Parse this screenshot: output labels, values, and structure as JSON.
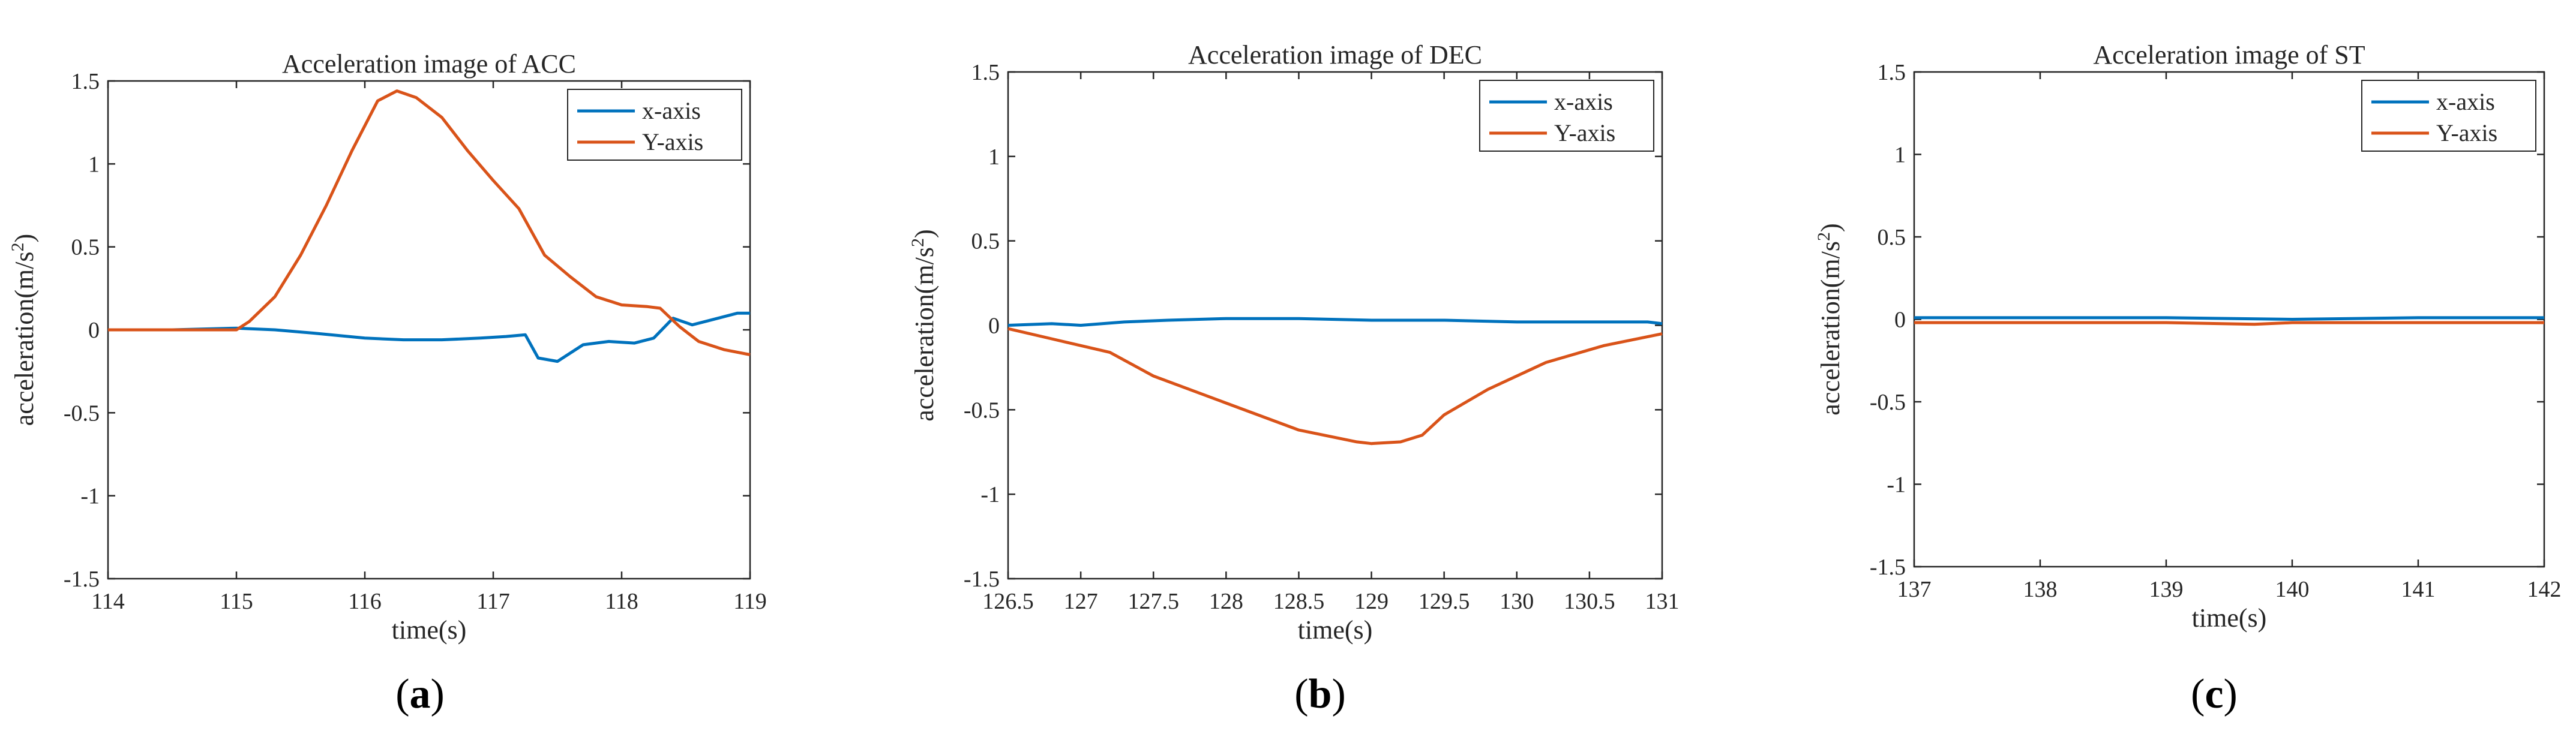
{
  "chart_data": [
    {
      "type": "line",
      "title": "Acceleration image of ACC",
      "xlabel": "time(s)",
      "ylabel": "acceleration(m/s",
      "ylabel_sup": "2",
      "ylabel_close": ")",
      "xlim": [
        114,
        119
      ],
      "ylim": [
        -1.5,
        1.5
      ],
      "xticks": [
        114,
        115,
        116,
        117,
        118,
        119
      ],
      "xtick_labels": [
        "114",
        "115",
        "116",
        "117",
        "118",
        "119"
      ],
      "yticks": [
        -1.5,
        -1,
        -0.5,
        0,
        0.5,
        1,
        1.5
      ],
      "ytick_labels": [
        "-1.5",
        "-1",
        "-0.5",
        "0",
        "0.5",
        "1",
        "1.5"
      ],
      "legend_position": "top-right",
      "panel_label": {
        "open": "(",
        "letter": "a",
        "close": ")"
      },
      "series": [
        {
          "name": "x-axis",
          "color": "#0072BD",
          "x": [
            114,
            114.5,
            115,
            115.3,
            115.6,
            116,
            116.3,
            116.6,
            116.9,
            117.1,
            117.25,
            117.35,
            117.5,
            117.7,
            117.9,
            118.1,
            118.25,
            118.4,
            118.55,
            118.7,
            118.9,
            119
          ],
          "y": [
            0,
            0,
            0.01,
            0,
            -0.02,
            -0.05,
            -0.06,
            -0.06,
            -0.05,
            -0.04,
            -0.03,
            -0.17,
            -0.19,
            -0.09,
            -0.07,
            -0.08,
            -0.05,
            0.07,
            0.03,
            0.06,
            0.1,
            0.1
          ]
        },
        {
          "name": "Y-axis",
          "color": "#D95319",
          "x": [
            114,
            114.5,
            115,
            115.1,
            115.3,
            115.5,
            115.7,
            115.9,
            116.1,
            116.25,
            116.4,
            116.6,
            116.8,
            117,
            117.2,
            117.4,
            117.6,
            117.8,
            118,
            118.2,
            118.3,
            118.45,
            118.6,
            118.8,
            119
          ],
          "y": [
            0,
            0,
            0,
            0.05,
            0.2,
            0.45,
            0.75,
            1.08,
            1.38,
            1.44,
            1.4,
            1.28,
            1.08,
            0.9,
            0.73,
            0.45,
            0.32,
            0.2,
            0.15,
            0.14,
            0.13,
            0.02,
            -0.07,
            -0.12,
            -0.15
          ]
        }
      ]
    },
    {
      "type": "line",
      "title": "Acceleration image of DEC",
      "xlabel": "time(s)",
      "ylabel": "acceleration(m/s",
      "ylabel_sup": "2",
      "ylabel_close": ")",
      "xlim": [
        126.5,
        131
      ],
      "ylim": [
        -1.5,
        1.5
      ],
      "xticks": [
        126.5,
        127,
        127.5,
        128,
        128.5,
        129,
        129.5,
        130,
        130.5,
        131
      ],
      "xtick_labels": [
        "126.5",
        "127",
        "127.5",
        "128",
        "128.5",
        "129",
        "129.5",
        "130",
        "130.5",
        "131"
      ],
      "yticks": [
        -1.5,
        -1,
        -0.5,
        0,
        0.5,
        1,
        1.5
      ],
      "ytick_labels": [
        "-1.5",
        "-1",
        "-0.5",
        "0",
        "0.5",
        "1",
        "1.5"
      ],
      "legend_position": "top-right",
      "panel_label": {
        "open": "(",
        "letter": "b",
        "close": ")"
      },
      "series": [
        {
          "name": "x-axis",
          "color": "#0072BD",
          "x": [
            126.5,
            126.8,
            127,
            127.3,
            127.6,
            128,
            128.5,
            129,
            129.5,
            130,
            130.5,
            130.9,
            131
          ],
          "y": [
            0,
            0.01,
            0,
            0.02,
            0.03,
            0.04,
            0.04,
            0.03,
            0.03,
            0.02,
            0.02,
            0.02,
            0.01
          ]
        },
        {
          "name": "Y-axis",
          "color": "#D95319",
          "x": [
            126.5,
            126.8,
            127.2,
            127.5,
            128,
            128.5,
            128.9,
            129,
            129.2,
            129.35,
            129.5,
            129.8,
            130.2,
            130.6,
            131
          ],
          "y": [
            -0.02,
            -0.08,
            -0.16,
            -0.3,
            -0.46,
            -0.62,
            -0.69,
            -0.7,
            -0.69,
            -0.65,
            -0.53,
            -0.38,
            -0.22,
            -0.12,
            -0.05
          ]
        }
      ]
    },
    {
      "type": "line",
      "title": "Acceleration image of ST",
      "xlabel": "time(s)",
      "ylabel": "acceleration(m/s",
      "ylabel_sup": "2",
      "ylabel_close": ")",
      "xlim": [
        137,
        142
      ],
      "ylim": [
        -1.5,
        1.5
      ],
      "xticks": [
        137,
        138,
        139,
        140,
        141,
        142
      ],
      "xtick_labels": [
        "137",
        "138",
        "139",
        "140",
        "141",
        "142"
      ],
      "yticks": [
        -1.5,
        -1,
        -0.5,
        0,
        0.5,
        1,
        1.5
      ],
      "ytick_labels": [
        "-1.5",
        "-1",
        "-0.5",
        "0",
        "0.5",
        "1",
        "1.5"
      ],
      "legend_position": "top-right",
      "panel_label": {
        "open": "(",
        "letter": "c",
        "close": ")"
      },
      "series": [
        {
          "name": "x-axis",
          "color": "#0072BD",
          "x": [
            137,
            138,
            139,
            140,
            141,
            142
          ],
          "y": [
            0.01,
            0.01,
            0.01,
            0.0,
            0.01,
            0.01
          ]
        },
        {
          "name": "Y-axis",
          "color": "#D95319",
          "x": [
            137,
            138,
            139,
            139.7,
            140,
            141,
            142
          ],
          "y": [
            -0.02,
            -0.02,
            -0.02,
            -0.03,
            -0.02,
            -0.02,
            -0.02
          ]
        }
      ]
    }
  ]
}
